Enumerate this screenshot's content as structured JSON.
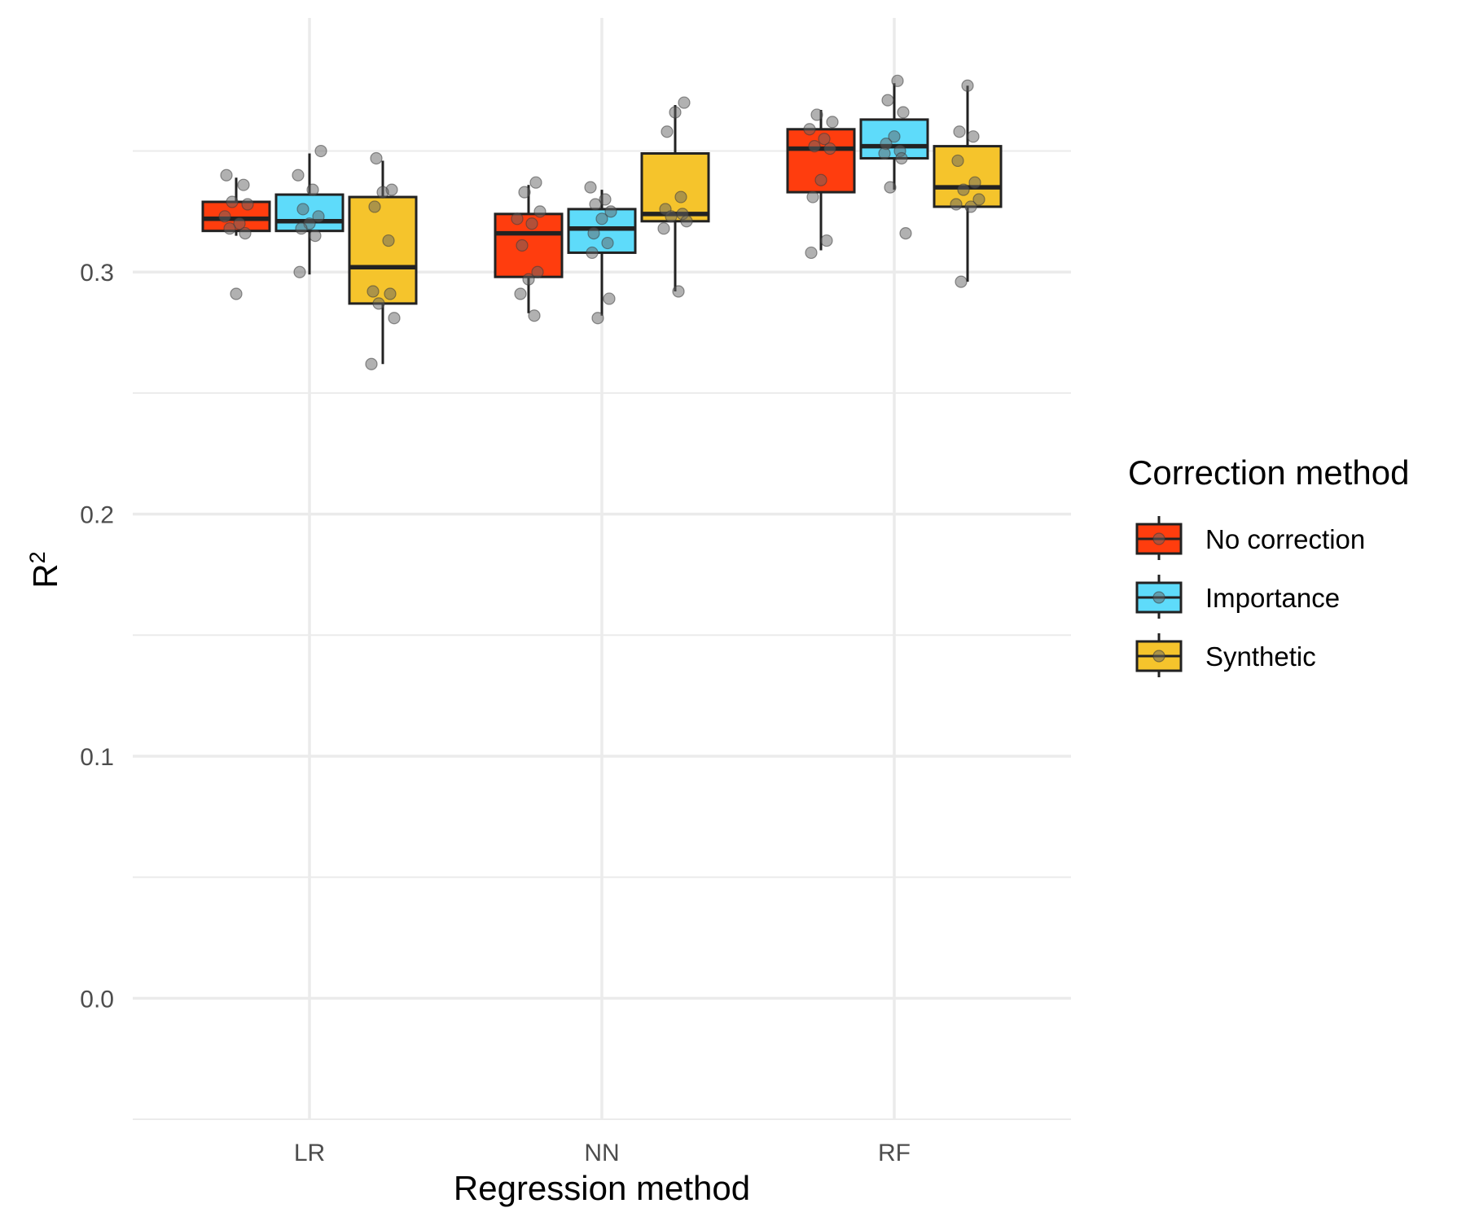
{
  "chart_data": {
    "type": "boxplot",
    "xlabel": "Regression method",
    "ylabel": "R",
    "ylabel_superscript": "2",
    "categories": [
      "LR",
      "NN",
      "RF"
    ],
    "ylim": [
      -0.05,
      0.405
    ],
    "yticks": [
      0.0,
      0.1,
      0.2,
      0.3
    ],
    "ytick_labels": [
      "0.0",
      "0.1",
      "0.2",
      "0.3"
    ],
    "grid": true,
    "legend": {
      "title": "Correction method",
      "position": "right"
    },
    "series": [
      {
        "name": "No correction",
        "color": "#FF3D0E",
        "boxes": [
          {
            "category": "LR",
            "whisker_low": 0.315,
            "q1": 0.317,
            "median": 0.322,
            "q3": 0.329,
            "whisker_high": 0.339,
            "points": [
              0.34,
              0.336,
              0.329,
              0.328,
              0.323,
              0.32,
              0.318,
              0.316,
              0.291
            ]
          },
          {
            "category": "NN",
            "whisker_low": 0.283,
            "q1": 0.298,
            "median": 0.316,
            "q3": 0.324,
            "whisker_high": 0.336,
            "points": [
              0.337,
              0.333,
              0.325,
              0.322,
              0.32,
              0.311,
              0.3,
              0.297,
              0.291,
              0.282
            ]
          },
          {
            "category": "RF",
            "whisker_low": 0.309,
            "q1": 0.333,
            "median": 0.351,
            "q3": 0.359,
            "whisker_high": 0.367,
            "points": [
              0.365,
              0.362,
              0.359,
              0.355,
              0.352,
              0.351,
              0.338,
              0.331,
              0.313,
              0.308
            ]
          }
        ]
      },
      {
        "name": "Importance",
        "color": "#5EDBFA",
        "boxes": [
          {
            "category": "LR",
            "whisker_low": 0.299,
            "q1": 0.317,
            "median": 0.321,
            "q3": 0.332,
            "whisker_high": 0.349,
            "points": [
              0.35,
              0.34,
              0.334,
              0.326,
              0.323,
              0.32,
              0.318,
              0.315,
              0.3
            ]
          },
          {
            "category": "NN",
            "whisker_low": 0.282,
            "q1": 0.308,
            "median": 0.318,
            "q3": 0.326,
            "whisker_high": 0.334,
            "points": [
              0.335,
              0.33,
              0.328,
              0.325,
              0.322,
              0.316,
              0.312,
              0.308,
              0.289,
              0.281
            ]
          },
          {
            "category": "RF",
            "whisker_low": 0.334,
            "q1": 0.347,
            "median": 0.352,
            "q3": 0.363,
            "whisker_high": 0.378,
            "points": [
              0.379,
              0.371,
              0.366,
              0.356,
              0.353,
              0.35,
              0.349,
              0.347,
              0.335,
              0.316
            ]
          }
        ]
      },
      {
        "name": "Synthetic",
        "color": "#F5C42C",
        "boxes": [
          {
            "category": "LR",
            "whisker_low": 0.262,
            "q1": 0.287,
            "median": 0.302,
            "q3": 0.331,
            "whisker_high": 0.346,
            "points": [
              0.347,
              0.334,
              0.333,
              0.327,
              0.313,
              0.292,
              0.291,
              0.287,
              0.281,
              0.262
            ]
          },
          {
            "category": "NN",
            "whisker_low": 0.292,
            "q1": 0.321,
            "median": 0.324,
            "q3": 0.349,
            "whisker_high": 0.369,
            "points": [
              0.37,
              0.366,
              0.358,
              0.331,
              0.326,
              0.324,
              0.323,
              0.321,
              0.318,
              0.292
            ]
          },
          {
            "category": "RF",
            "whisker_low": 0.296,
            "q1": 0.327,
            "median": 0.335,
            "q3": 0.352,
            "whisker_high": 0.377,
            "points": [
              0.377,
              0.358,
              0.356,
              0.346,
              0.337,
              0.334,
              0.33,
              0.328,
              0.327,
              0.296
            ]
          }
        ]
      }
    ]
  }
}
